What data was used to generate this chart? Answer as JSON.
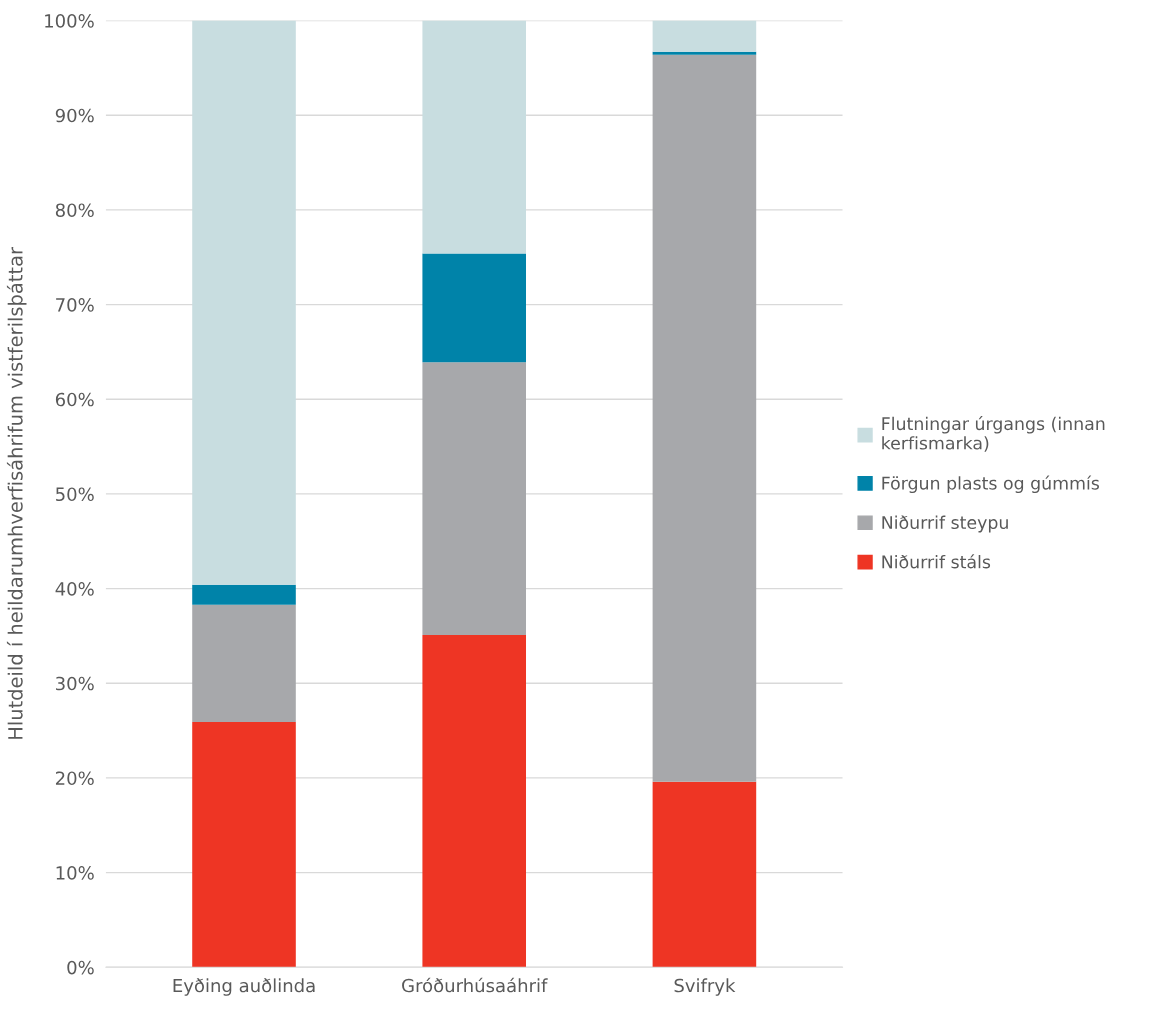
{
  "chart_data": {
    "type": "bar",
    "stacked": true,
    "ylabel": "Hlutdeild í heildarumhverfisáhrifum vistferilsþáttar",
    "categories": [
      "Eyðing auðlinda",
      "Gróðurhúsaáhrif",
      "Svifryk"
    ],
    "series": [
      {
        "name": "Niðurrif stáls",
        "color": "#ee3524",
        "values": [
          25.9,
          35.1,
          19.6
        ]
      },
      {
        "name": "Niðurrif steypu",
        "color": "#a7a8ab",
        "values": [
          12.4,
          28.8,
          76.8
        ]
      },
      {
        "name": "Förgun plasts og gúmmís",
        "color": "#0083a9",
        "values": [
          2.1,
          11.5,
          0.3
        ]
      },
      {
        "name": "Flutningar úrgangs (innan kerfismarka)",
        "color": "#c8dde0",
        "values": [
          59.6,
          24.6,
          3.3
        ]
      }
    ],
    "ylim": [
      0,
      100
    ],
    "yticks": [
      {
        "value": 0,
        "label": "0%"
      },
      {
        "value": 10,
        "label": "10%"
      },
      {
        "value": 20,
        "label": "20%"
      },
      {
        "value": 30,
        "label": "30%"
      },
      {
        "value": 40,
        "label": "40%"
      },
      {
        "value": 50,
        "label": "50%"
      },
      {
        "value": 60,
        "label": "60%"
      },
      {
        "value": 70,
        "label": "70%"
      },
      {
        "value": 80,
        "label": "80%"
      },
      {
        "value": 90,
        "label": "90%"
      },
      {
        "value": 100,
        "label": "100%"
      }
    ],
    "grid": "y",
    "legend": "right"
  }
}
